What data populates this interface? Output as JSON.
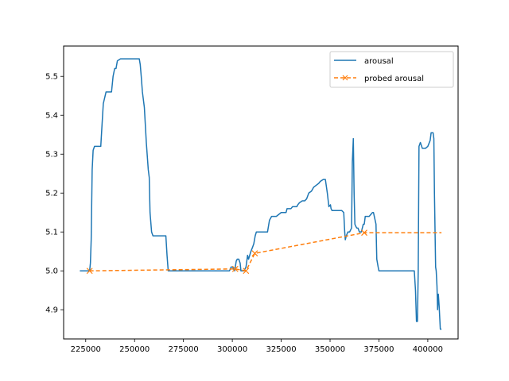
{
  "chart_data": {
    "type": "line",
    "title": "",
    "xlabel": "",
    "ylabel": "",
    "xlim": [
      213700,
      415500
    ],
    "ylim": [
      4.825,
      5.578
    ],
    "xticks": [
      225000,
      250000,
      275000,
      300000,
      325000,
      350000,
      375000,
      400000
    ],
    "xtick_labels": [
      "225000",
      "250000",
      "275000",
      "300000",
      "325000",
      "350000",
      "375000",
      "400000"
    ],
    "yticks": [
      4.9,
      5.0,
      5.1,
      5.2,
      5.3,
      5.4,
      5.5
    ],
    "ytick_labels": [
      "4.9",
      "5.0",
      "5.1",
      "5.2",
      "5.3",
      "5.4",
      "5.5"
    ],
    "grid": false,
    "legend_position": "top-right",
    "colors": {
      "arousal": "#1f77b4",
      "probed": "#ff7f0e"
    },
    "series": [
      {
        "name": "arousal",
        "style": "solid",
        "x": [
          222000,
          227000,
          227400,
          227800,
          228300,
          228800,
          229500,
          231000,
          232000,
          232700,
          233400,
          234000,
          235400,
          236400,
          237700,
          238200,
          239000,
          239800,
          240500,
          241200,
          242800,
          245000,
          249000,
          251000,
          252400,
          252900,
          253400,
          254000,
          255000,
          256000,
          257000,
          257500,
          257900,
          258700,
          259400,
          260000,
          262000,
          266000,
          266600,
          267200,
          268000,
          272000,
          280000,
          290000,
          298500,
          299000,
          299400,
          300200,
          300600,
          301200,
          302000,
          302500,
          303300,
          304000,
          304400,
          305000,
          306000,
          307000,
          307800,
          308300,
          308900,
          309500,
          310300,
          311000,
          311700,
          312300,
          313800,
          314400,
          316000,
          318000,
          319000,
          320100,
          322500,
          325000,
          325700,
          327500,
          328000,
          330000,
          330800,
          331500,
          333000,
          333500,
          334300,
          335800,
          337000,
          338000,
          339100,
          340500,
          341600,
          342900,
          344200,
          345000,
          346500,
          347600,
          348600,
          349400,
          350200,
          350500,
          351000,
          351900,
          352500,
          353200,
          354000,
          356000,
          357000,
          357500,
          357800,
          358300,
          359100,
          360000,
          361000,
          361400,
          361900,
          362300,
          362700,
          363100,
          363700,
          364300,
          365000,
          366000,
          367000,
          367500,
          368000,
          370000,
          371700,
          372200,
          373500,
          373900,
          374600,
          375000,
          380000,
          386000,
          392000,
          393100,
          393700,
          394200,
          394700,
          395100,
          395500,
          396200,
          397200,
          398800,
          400000,
          401200,
          401700,
          402200,
          402700,
          403100,
          403400,
          404000,
          404300,
          404700,
          405000,
          405400,
          405800,
          406400,
          407000
        ],
        "y": [
          5.0,
          5.0,
          5.02,
          5.08,
          5.26,
          5.31,
          5.32,
          5.32,
          5.32,
          5.32,
          5.38,
          5.43,
          5.46,
          5.46,
          5.46,
          5.46,
          5.5,
          5.52,
          5.52,
          5.54,
          5.545,
          5.545,
          5.545,
          5.545,
          5.545,
          5.53,
          5.5,
          5.46,
          5.42,
          5.33,
          5.26,
          5.24,
          5.15,
          5.1,
          5.09,
          5.09,
          5.09,
          5.09,
          5.04,
          5.0,
          5.0,
          5.0,
          5.0,
          5.0,
          5.0,
          5.005,
          5.01,
          5.01,
          5.005,
          5.0,
          5.025,
          5.03,
          5.03,
          5.02,
          5.0,
          5.0,
          5.0,
          5.01,
          5.04,
          5.03,
          5.04,
          5.05,
          5.06,
          5.07,
          5.09,
          5.1,
          5.1,
          5.1,
          5.1,
          5.1,
          5.13,
          5.14,
          5.14,
          5.15,
          5.15,
          5.15,
          5.16,
          5.16,
          5.165,
          5.165,
          5.165,
          5.17,
          5.175,
          5.18,
          5.18,
          5.185,
          5.2,
          5.205,
          5.215,
          5.22,
          5.225,
          5.23,
          5.235,
          5.235,
          5.2,
          5.165,
          5.17,
          5.16,
          5.155,
          5.155,
          5.155,
          5.155,
          5.155,
          5.155,
          5.15,
          5.1,
          5.08,
          5.09,
          5.1,
          5.1,
          5.11,
          5.28,
          5.34,
          5.2,
          5.12,
          5.115,
          5.11,
          5.11,
          5.1,
          5.1,
          5.12,
          5.12,
          5.14,
          5.14,
          5.15,
          5.15,
          5.12,
          5.03,
          5.01,
          5.0,
          5.0,
          5.0,
          5.0,
          5.0,
          4.95,
          4.87,
          4.87,
          5.0,
          5.32,
          5.33,
          5.315,
          5.315,
          5.32,
          5.335,
          5.355,
          5.355,
          5.355,
          5.34,
          5.2,
          5.01,
          5.0,
          4.96,
          4.9,
          4.94,
          4.91,
          4.85,
          4.85
        ]
      },
      {
        "name": "probed arousal",
        "style": "dashed",
        "marker": "x",
        "x": [
          227000,
          301500,
          307000,
          311500,
          367500,
          407000
        ],
        "y": [
          5.0,
          5.005,
          5.0,
          5.045,
          5.098,
          5.098
        ],
        "marker_x": [
          227000,
          301500,
          307000,
          311500,
          367500
        ]
      }
    ]
  }
}
